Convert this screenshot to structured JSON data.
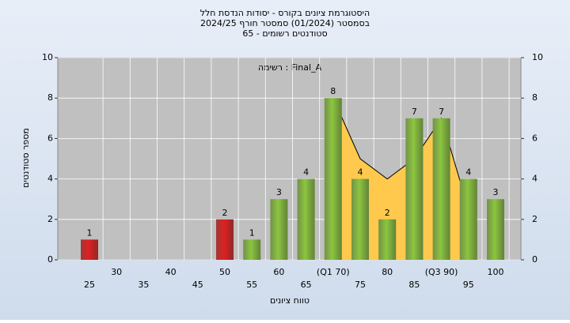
{
  "chart_data": {
    "type": "bar",
    "title": [
      "היסטוגרמת ציונים בקורס - יסודות הנדסת חלל",
      "בסמסטר (01/2024) סמסטר חורף 2024/25",
      "סטודנטים רשומים - 65"
    ],
    "annotation": "רשימה : Final_A",
    "x_label": "טווח ציונים",
    "y_label": "מספר סטודנטים",
    "categories": [
      "25",
      "30",
      "35",
      "40",
      "45",
      "50",
      "55",
      "60",
      "65",
      "(Q1 70)",
      "75",
      "80",
      "85",
      "(Q3 90)",
      "95",
      "100"
    ],
    "values": [
      1,
      0,
      0,
      0,
      0,
      2,
      1,
      3,
      4,
      8,
      4,
      2,
      7,
      7,
      4,
      3
    ],
    "colors": [
      "#e02020",
      "#e02020",
      "#e02020",
      "#e02020",
      "#e02020",
      "#e02020",
      "#8cc63f",
      "#8cc63f",
      "#8cc63f",
      "#8cc63f",
      "#8cc63f",
      "#8cc63f",
      "#8cc63f",
      "#8cc63f",
      "#8cc63f",
      "#8cc63f"
    ],
    "curve": [
      null,
      null,
      null,
      null,
      null,
      null,
      null,
      null,
      null,
      8,
      5,
      4,
      5,
      7,
      2.5,
      null
    ],
    "curve_fill": "#ffc94d",
    "ylim": [
      0,
      10
    ],
    "yticks": [
      0,
      2,
      4,
      6,
      8,
      10
    ],
    "grid": true
  }
}
